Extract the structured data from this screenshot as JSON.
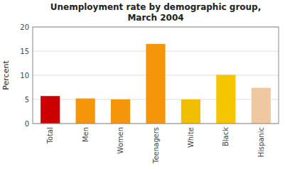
{
  "chart_data": {
    "type": "bar",
    "title": "Unemployment rate by demographic group,\nMarch 2004",
    "ylabel": "Percent",
    "categories": [
      "Total",
      "Men",
      "Women",
      "Teenagers",
      "White",
      "Black",
      "Hispanic"
    ],
    "values": [
      5.7,
      5.2,
      5.0,
      16.5,
      5.0,
      10.1,
      7.4
    ],
    "colors": [
      "#cc0000",
      "#f5960a",
      "#f5960a",
      "#f5960a",
      "#f0c000",
      "#f5c500",
      "#f0c8a0"
    ],
    "ylim": [
      0,
      20
    ],
    "yticks": [
      0,
      5,
      10,
      15,
      20
    ],
    "grid": true
  }
}
